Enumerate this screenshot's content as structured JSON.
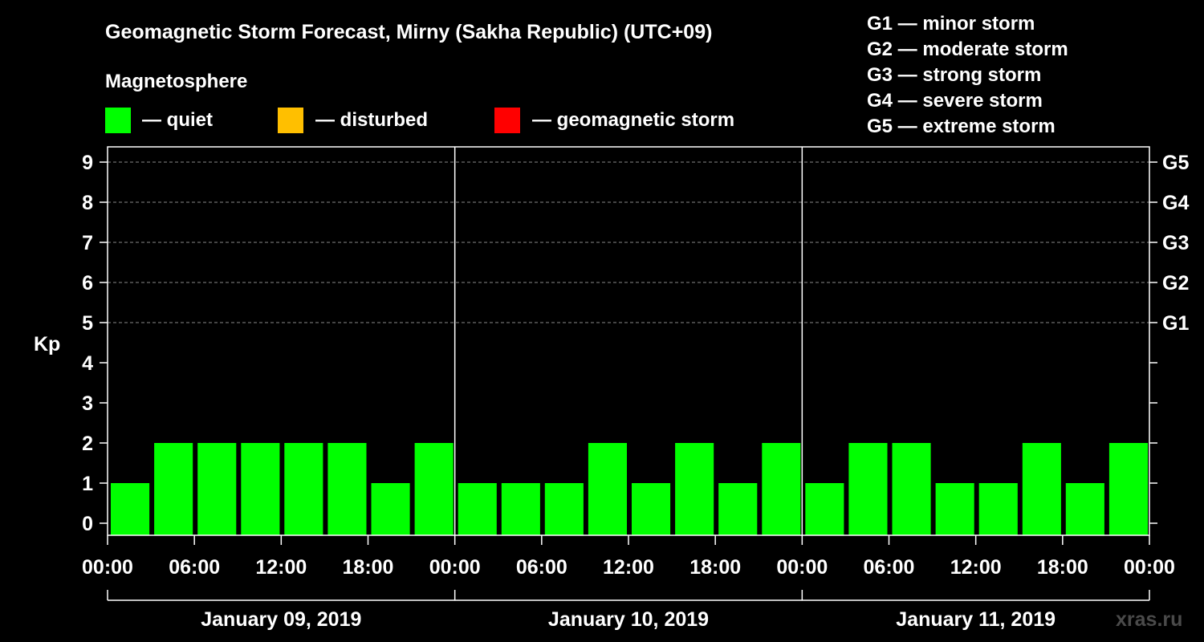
{
  "chart_data": {
    "type": "bar",
    "title": "Geomagnetic Storm Forecast, Mirny (Sakha Republic) (UTC+09)",
    "ylabel": "Kp",
    "ylim": [
      0,
      9
    ],
    "y_ticks": [
      "0",
      "1",
      "2",
      "3",
      "4",
      "5",
      "6",
      "7",
      "8",
      "9"
    ],
    "right_ticks": [
      {
        "kp": 5,
        "label": "G1"
      },
      {
        "kp": 6,
        "label": "G2"
      },
      {
        "kp": 7,
        "label": "G3"
      },
      {
        "kp": 8,
        "label": "G4"
      },
      {
        "kp": 9,
        "label": "G5"
      }
    ],
    "x_tick_labels": [
      "00:00",
      "06:00",
      "12:00",
      "18:00",
      "00:00",
      "06:00",
      "12:00",
      "18:00",
      "00:00",
      "06:00",
      "12:00",
      "18:00",
      "00:00"
    ],
    "days": [
      "January 09, 2019",
      "January 10, 2019",
      "January 11, 2019"
    ],
    "interval_hours": 3,
    "values": [
      1,
      2,
      2,
      2,
      2,
      2,
      1,
      2,
      1,
      1,
      1,
      2,
      1,
      2,
      1,
      2,
      1,
      2,
      2,
      1,
      1,
      2,
      1,
      2
    ],
    "grid": "dashed at Kp 5-9"
  },
  "legend": {
    "heading": "Magnetosphere",
    "items": [
      {
        "label": "— quiet",
        "color": "#00ff00"
      },
      {
        "label": "— disturbed",
        "color": "#ffbf00"
      },
      {
        "label": "— geomagnetic storm",
        "color": "#ff0000"
      }
    ]
  },
  "scale": [
    "G1 — minor storm",
    "G2 — moderate storm",
    "G3 — strong storm",
    "G4 — severe storm",
    "G5 — extreme storm"
  ],
  "watermark": "xras.ru",
  "colors": {
    "quiet": "#00ff00",
    "disturbed": "#ffbf00",
    "storm": "#ff0000",
    "background": "#000000",
    "axis": "#ffffff"
  }
}
